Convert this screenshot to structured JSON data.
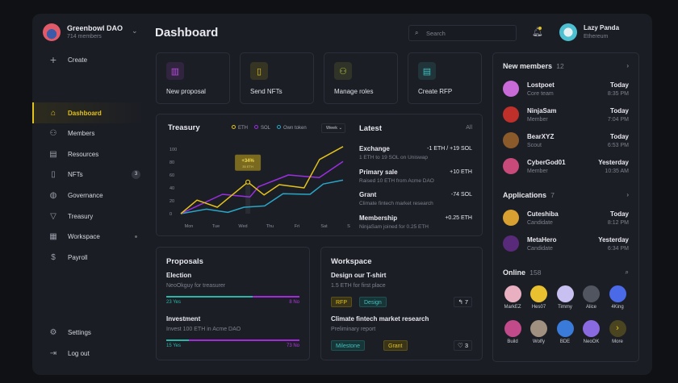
{
  "org": {
    "name": "Greenbowl DAO",
    "members": "714 members"
  },
  "sidebar": {
    "create": "Create",
    "items": [
      {
        "label": "Dashboard",
        "icon": "home-icon"
      },
      {
        "label": "Members",
        "icon": "users-icon"
      },
      {
        "label": "Resources",
        "icon": "file-icon"
      },
      {
        "label": "NFTs",
        "icon": "nft-icon",
        "badge": "3"
      },
      {
        "label": "Governance",
        "icon": "globe-icon"
      },
      {
        "label": "Treasury",
        "icon": "diamond-icon"
      },
      {
        "label": "Workspace",
        "icon": "building-icon"
      },
      {
        "label": "Payroll",
        "icon": "dollar-icon"
      }
    ],
    "settings": "Settings",
    "logout": "Log out"
  },
  "header": {
    "title": "Dashboard",
    "search_placeholder": "Search",
    "user": {
      "name": "Lazy Panda",
      "network": "Ethereum"
    }
  },
  "quick_actions": [
    {
      "label": "New proposal",
      "color": "#b84de0"
    },
    {
      "label": "Send NFTs",
      "color": "#e3c21a"
    },
    {
      "label": "Manage roles",
      "color": "#b5c23a"
    },
    {
      "label": "Create RFP",
      "color": "#3fc1c1"
    }
  ],
  "treasury": {
    "title": "Treasury",
    "range": "Week"
  },
  "chart_data": {
    "type": "line",
    "ylim": [
      0,
      100
    ],
    "yticks": [
      0,
      20,
      40,
      60,
      80,
      100
    ],
    "categories": [
      "Mon",
      "Tue",
      "Wed",
      "Thu",
      "Fri",
      "Sat",
      "Sun"
    ],
    "series": [
      {
        "name": "ETH",
        "color": "#e3c21a",
        "x": [
          0,
          0.6,
          1.35,
          2.48,
          3.08,
          3.64,
          4.56,
          5.13,
          6
        ],
        "y": [
          0,
          21,
          10,
          49,
          29,
          45,
          40,
          84,
          104
        ]
      },
      {
        "name": "SOL",
        "color": "#9b2fe0",
        "x": [
          0,
          1.54,
          2.56,
          2.88,
          3.98,
          5.12,
          6
        ],
        "y": [
          0,
          30,
          26,
          42,
          60,
          56,
          81
        ]
      },
      {
        "name": "Own token",
        "color": "#2aa6c7",
        "x": [
          0,
          0.95,
          1.74,
          2.34,
          3.1,
          3.78,
          4.78,
          5.27,
          6
        ],
        "y": [
          0,
          7,
          2,
          10,
          12,
          31,
          30,
          46,
          52
        ]
      }
    ],
    "annotation": {
      "label": "+34%",
      "sub": "35 ETH",
      "series": "ETH",
      "x": 2.48,
      "y": 49
    }
  },
  "latest": {
    "title": "Latest",
    "all": "All",
    "items": [
      {
        "title": "Exchange",
        "value": "-1 ETH / +19 SOL",
        "desc": "1 ETH to 19 SOL on Uniswap"
      },
      {
        "title": "Primary sale",
        "value": "+10 ETH",
        "desc": "Raised 10 ETH from Acme DAO"
      },
      {
        "title": "Grant",
        "value": "-74 SOL",
        "desc": "Climate fintech market research"
      },
      {
        "title": "Membership",
        "value": "+0.25 ETH",
        "desc": "NinjaSam joined for 0.25 ETH"
      }
    ]
  },
  "proposals": {
    "title": "Proposals",
    "items": [
      {
        "title": "Election",
        "desc": "NeoOkguy for treasurer",
        "yes": "23 Yes",
        "no": "8 No",
        "yes_frac": 0.65
      },
      {
        "title": "Investment",
        "desc": "Invest 100 ETH in Acme DAO",
        "yes": "15 Yes",
        "no": "73 No",
        "yes_frac": 0.17
      }
    ]
  },
  "workspace": {
    "title": "Workspace",
    "items": [
      {
        "title": "Design our T-shirt",
        "desc": "1.5 ETH for first place",
        "tags": [
          "RFP",
          "Design"
        ],
        "count": "7",
        "icon": "reply-icon"
      },
      {
        "title": "Climate fintech market research",
        "desc": "Preliminary report",
        "tags": [
          "Milestone",
          "Grant"
        ],
        "count": "3",
        "icon": "heart-icon"
      }
    ]
  },
  "new_members": {
    "title": "New members",
    "count": "12",
    "items": [
      {
        "name": "Lostpoet",
        "role": "Core team",
        "day": "Today",
        "time": "8:35 PM",
        "color": "#c86ad8"
      },
      {
        "name": "NinjaSam",
        "role": "Member",
        "day": "Today",
        "time": "7:04 PM",
        "color": "#c0302a"
      },
      {
        "name": "BearXYZ",
        "role": "Scout",
        "day": "Today",
        "time": "6:53 PM",
        "color": "#8a5a2a"
      },
      {
        "name": "CyberGod01",
        "role": "Member",
        "day": "Yesterday",
        "time": "10:35 AM",
        "color": "#c84a7a"
      }
    ]
  },
  "applications": {
    "title": "Applications",
    "count": "7",
    "items": [
      {
        "name": "Cuteshiba",
        "role": "Candidate",
        "day": "Today",
        "time": "8:12 PM",
        "color": "#d8a030"
      },
      {
        "name": "MetaHero",
        "role": "Candidate",
        "day": "Yesterday",
        "time": "6:34 PM",
        "color": "#5a2a7a"
      }
    ]
  },
  "online": {
    "title": "Online",
    "count": "158",
    "users": [
      {
        "name": "MarkEZ",
        "color": "#e8b0c0"
      },
      {
        "name": "Hes07",
        "color": "#e8c030"
      },
      {
        "name": "Timmy",
        "color": "#c8c0f0"
      },
      {
        "name": "Alice",
        "color": "#505560"
      },
      {
        "name": "4King",
        "color": "#4a6ae8"
      },
      {
        "name": "Build",
        "color": "#c04a8a"
      },
      {
        "name": "Wolfy",
        "color": "#a09080"
      },
      {
        "name": "BDE",
        "color": "#3a7ad8"
      },
      {
        "name": "NeoOK",
        "color": "#8a6ae0"
      },
      {
        "name": "More",
        "color": "#4a4520"
      }
    ]
  }
}
